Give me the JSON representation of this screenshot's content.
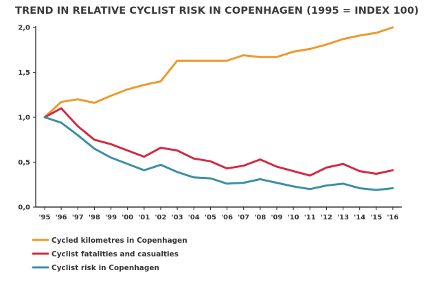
{
  "chart_data": {
    "type": "line",
    "title": "TREND IN RELATIVE CYCLIST RISK IN COPENHAGEN (1995 = INDEX 100)",
    "xlabel": "",
    "ylabel": "",
    "categories": [
      "'95",
      "'96",
      "'97",
      "'98",
      "'99",
      "'00",
      "'01",
      "'02",
      "'03",
      "'04",
      "'05",
      "'06",
      "'07",
      "'08",
      "'09",
      "'10",
      "'11",
      "'12",
      "'13",
      "'14",
      "'15",
      "'16"
    ],
    "ylim": [
      0,
      2
    ],
    "yticks": [
      {
        "value": 0,
        "label": "0,0"
      },
      {
        "value": 0.5,
        "label": "0,5"
      },
      {
        "value": 1,
        "label": "1,0"
      },
      {
        "value": 1.5,
        "label": "1,5"
      },
      {
        "value": 2,
        "label": "2,0"
      }
    ],
    "grid": false,
    "legend_position": "bottom-left",
    "series": [
      {
        "name": "Cycled kilometres in Copenhagen",
        "color": "#F0982A",
        "values": [
          1.0,
          1.17,
          1.2,
          1.16,
          1.24,
          1.31,
          1.36,
          1.4,
          1.63,
          1.63,
          1.63,
          1.63,
          1.69,
          1.67,
          1.67,
          1.73,
          1.76,
          1.81,
          1.87,
          1.91,
          1.94,
          2.0
        ]
      },
      {
        "name": "Cyclist fatalities and casualties",
        "color": "#D22A3F",
        "values": [
          1.0,
          1.1,
          0.9,
          0.75,
          0.7,
          0.63,
          0.56,
          0.66,
          0.63,
          0.54,
          0.51,
          0.43,
          0.46,
          0.53,
          0.45,
          0.4,
          0.35,
          0.44,
          0.48,
          0.4,
          0.37,
          0.41
        ]
      },
      {
        "name": "Cyclist risk in Copenhagen",
        "color": "#3B8FA6",
        "values": [
          1.0,
          0.94,
          0.8,
          0.65,
          0.55,
          0.48,
          0.41,
          0.47,
          0.39,
          0.33,
          0.32,
          0.26,
          0.27,
          0.31,
          0.27,
          0.23,
          0.2,
          0.24,
          0.26,
          0.21,
          0.19,
          0.21
        ]
      }
    ]
  },
  "colors": {
    "axis": "#333333",
    "text": "#333333"
  }
}
